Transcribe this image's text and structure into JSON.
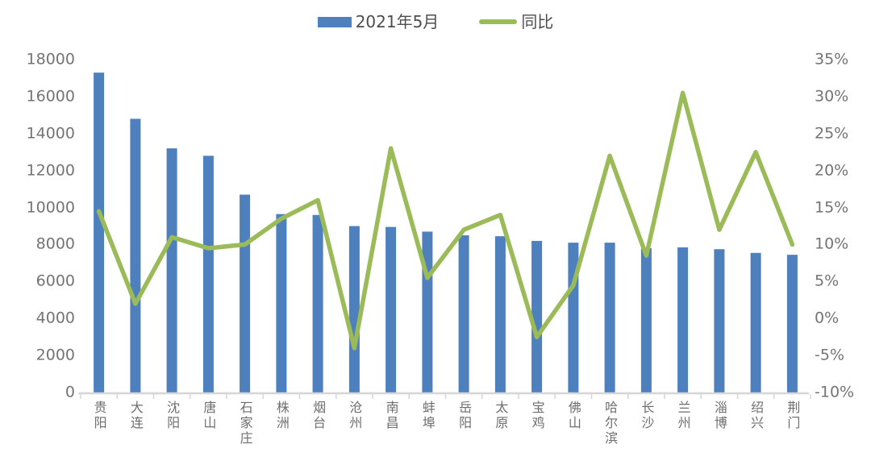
{
  "legend": {
    "bar_label": "2021年5月",
    "line_label": "同比"
  },
  "colors": {
    "bar": "#4e80bd",
    "line": "#9bbb59",
    "axis_line": "#d6d6d6",
    "tick_text": "#747474",
    "legend_text": "#4d4d4d",
    "background": "#ffffff"
  },
  "chart_data": {
    "type": "bar+line",
    "title": "",
    "xlabel": "",
    "ylabel_left": "",
    "ylabel_right": "",
    "grid": false,
    "legend_position": "top-center",
    "categories": [
      "贵阳",
      "大连",
      "沈阳",
      "唐山",
      "石家庄",
      "株洲",
      "烟台",
      "沧州",
      "南昌",
      "蚌埠",
      "岳阳",
      "太原",
      "宝鸡",
      "佛山",
      "哈尔滨",
      "长沙",
      "兰州",
      "淄博",
      "绍兴",
      "荆门"
    ],
    "series": [
      {
        "name": "2021年5月",
        "type": "bar",
        "y_axis": "left",
        "color": "#4e80bd",
        "values": [
          17300,
          14800,
          13200,
          12800,
          10700,
          9650,
          9600,
          9000,
          8950,
          8700,
          8500,
          8450,
          8200,
          8100,
          8100,
          7800,
          7850,
          7750,
          7550,
          7450
        ]
      },
      {
        "name": "同比",
        "type": "line",
        "y_axis": "right",
        "unit": "%",
        "color": "#9bbb59",
        "values": [
          14.5,
          2,
          11,
          9.5,
          10,
          13.5,
          16,
          -4,
          23,
          5.5,
          12,
          14,
          -2.5,
          4.5,
          22,
          8.5,
          30.5,
          12,
          22.5,
          10
        ]
      }
    ],
    "left_axis": {
      "min": 0,
      "max": 18000,
      "step": 2000,
      "tick_values": [
        0,
        2000,
        4000,
        6000,
        8000,
        10000,
        12000,
        14000,
        16000,
        18000
      ],
      "tick_labels": [
        "0",
        "2000",
        "4000",
        "6000",
        "8000",
        "10000",
        "12000",
        "14000",
        "16000",
        "18000"
      ]
    },
    "right_axis": {
      "min": -10,
      "max": 35,
      "step": 5,
      "tick_values": [
        -10,
        -5,
        0,
        5,
        10,
        15,
        20,
        25,
        30,
        35
      ],
      "tick_labels": [
        "-10%",
        "-5%",
        "0%",
        "5%",
        "10%",
        "15%",
        "20%",
        "25%",
        "30%",
        "35%"
      ]
    }
  }
}
